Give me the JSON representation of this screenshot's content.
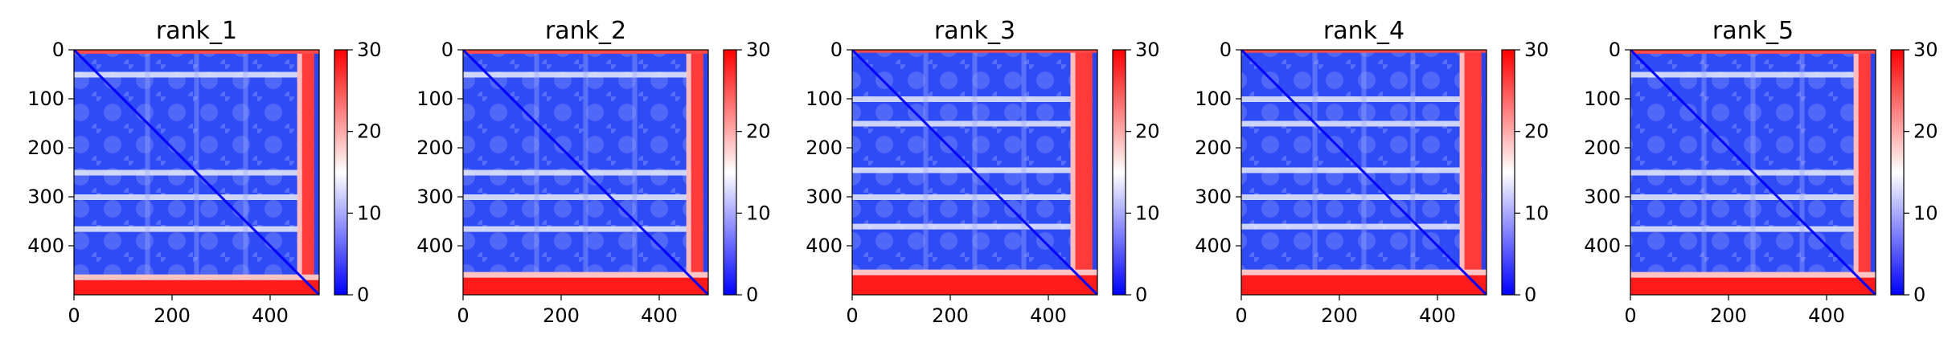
{
  "chart_data": [
    {
      "type": "heatmap",
      "title": "rank_1",
      "xticks": [
        0,
        200,
        400
      ],
      "yticks": [
        0,
        100,
        200,
        300,
        400
      ],
      "xlim": [
        0,
        500
      ],
      "ylim": [
        500,
        0
      ],
      "colorbar": {
        "min": 0,
        "max": 30,
        "ticks": [
          0,
          10,
          20,
          30
        ],
        "colormap": [
          "#0000ff",
          "#ffffff",
          "#ff0000"
        ]
      },
      "red_bands": {
        "top_rows": [
          0,
          8
        ],
        "bottom_rows": [
          470,
          500
        ],
        "right_cols": [
          465,
          490
        ],
        "light_rows": [
          50,
          250,
          300,
          365
        ]
      }
    },
    {
      "type": "heatmap",
      "title": "rank_2",
      "xticks": [
        0,
        200,
        400
      ],
      "yticks": [
        0,
        100,
        200,
        300,
        400
      ],
      "xlim": [
        0,
        500
      ],
      "ylim": [
        500,
        0
      ],
      "colorbar": {
        "min": 0,
        "max": 30,
        "ticks": [
          0,
          10,
          20,
          30
        ],
        "colormap": [
          "#0000ff",
          "#ffffff",
          "#ff0000"
        ]
      },
      "red_bands": {
        "top_rows": [
          0,
          8
        ],
        "bottom_rows": [
          465,
          500
        ],
        "right_cols": [
          465,
          490
        ],
        "light_rows": [
          50,
          250,
          300,
          365
        ]
      }
    },
    {
      "type": "heatmap",
      "title": "rank_3",
      "xticks": [
        0,
        200,
        400
      ],
      "yticks": [
        0,
        100,
        200,
        300,
        400
      ],
      "xlim": [
        0,
        500
      ],
      "ylim": [
        500,
        0
      ],
      "colorbar": {
        "min": 0,
        "max": 30,
        "ticks": [
          0,
          10,
          20,
          30
        ],
        "colormap": [
          "#0000ff",
          "#ffffff",
          "#ff0000"
        ]
      },
      "red_bands": {
        "top_rows": [
          0,
          6
        ],
        "bottom_rows": [
          460,
          500
        ],
        "right_cols": [
          455,
          490
        ],
        "light_rows": [
          100,
          150,
          245,
          300,
          360
        ]
      }
    },
    {
      "type": "heatmap",
      "title": "rank_4",
      "xticks": [
        0,
        200,
        400
      ],
      "yticks": [
        0,
        100,
        200,
        300,
        400
      ],
      "xlim": [
        0,
        500
      ],
      "ylim": [
        500,
        0
      ],
      "colorbar": {
        "min": 0,
        "max": 30,
        "ticks": [
          0,
          10,
          20,
          30
        ],
        "colormap": [
          "#0000ff",
          "#ffffff",
          "#ff0000"
        ]
      },
      "red_bands": {
        "top_rows": [
          0,
          6
        ],
        "bottom_rows": [
          460,
          500
        ],
        "right_cols": [
          455,
          490
        ],
        "light_rows": [
          100,
          150,
          245,
          300,
          360
        ]
      }
    },
    {
      "type": "heatmap",
      "title": "rank_5",
      "xticks": [
        0,
        200,
        400
      ],
      "yticks": [
        0,
        100,
        200,
        300,
        400
      ],
      "xlim": [
        0,
        500
      ],
      "ylim": [
        500,
        0
      ],
      "colorbar": {
        "min": 0,
        "max": 30,
        "ticks": [
          0,
          10,
          20,
          30
        ],
        "colormap": [
          "#0000ff",
          "#ffffff",
          "#ff0000"
        ]
      },
      "red_bands": {
        "top_rows": [
          0,
          8
        ],
        "bottom_rows": [
          465,
          500
        ],
        "right_cols": [
          465,
          490
        ],
        "light_rows": [
          50,
          250,
          300,
          365
        ]
      }
    }
  ]
}
